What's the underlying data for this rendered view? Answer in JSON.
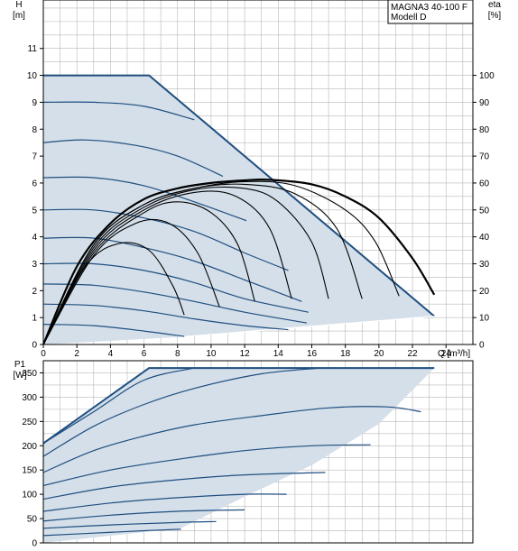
{
  "title": {
    "line1": "MAGNA3 40-100 F",
    "line2": "Modell D"
  },
  "colors": {
    "envelope_fill": "#d4dfe9",
    "envelope_edge": "#1f4e80",
    "curve": "#1f4e80",
    "efficiency_curve": "#000000",
    "grid": "#b8b8b8",
    "axis": "#000000"
  },
  "chart_data": [
    {
      "type": "line",
      "name": "head",
      "ylabel": "H",
      "yunit": "[m]",
      "y2label": "eta",
      "y2unit": "[%]",
      "xlabel": "Q [m³/h]",
      "xlim": [
        0,
        25.6
      ],
      "ylim": [
        0,
        12.8
      ],
      "y2lim": [
        0,
        128
      ],
      "xticks": [
        0,
        2,
        4,
        6,
        8,
        10,
        12,
        14,
        16,
        18,
        20,
        22,
        24
      ],
      "yticks": [
        0,
        1,
        2,
        3,
        4,
        5,
        6,
        7,
        8,
        9,
        10,
        11
      ],
      "y2ticks": [
        0,
        10,
        20,
        30,
        40,
        50,
        60,
        70,
        80,
        90,
        100
      ],
      "grid": true,
      "envelope": {
        "x": [
          0,
          6.3,
          23.3,
          23.3,
          8.2,
          0
        ],
        "y": [
          10,
          10,
          1.05,
          1.05,
          0.28,
          0
        ]
      },
      "head_curves": [
        {
          "x": [
            0,
            3,
            6,
            9.0
          ],
          "y": [
            9.0,
            9.0,
            8.85,
            8.35
          ]
        },
        {
          "x": [
            0,
            2.5,
            5.5,
            8.0,
            10.7
          ],
          "y": [
            7.5,
            7.6,
            7.4,
            7.0,
            6.25
          ]
        },
        {
          "x": [
            0,
            3,
            6,
            9,
            12.1
          ],
          "y": [
            6.2,
            6.2,
            5.9,
            5.3,
            4.6
          ]
        },
        {
          "x": [
            0,
            3,
            6,
            9,
            12,
            14.6
          ],
          "y": [
            5.0,
            5.0,
            4.7,
            4.2,
            3.4,
            2.75
          ]
        },
        {
          "x": [
            0,
            3,
            6,
            9,
            12,
            15.4
          ],
          "y": [
            3.95,
            3.95,
            3.6,
            3.1,
            2.4,
            1.6
          ]
        },
        {
          "x": [
            0,
            3,
            6,
            9,
            12,
            15.8
          ],
          "y": [
            3.0,
            3.0,
            2.75,
            2.3,
            1.7,
            1.2
          ]
        },
        {
          "x": [
            0,
            3,
            6,
            9,
            12,
            15.7
          ],
          "y": [
            2.25,
            2.2,
            1.95,
            1.6,
            1.2,
            0.8
          ]
        },
        {
          "x": [
            0,
            3,
            6,
            9,
            12,
            14.6
          ],
          "y": [
            1.5,
            1.45,
            1.25,
            0.95,
            0.7,
            0.55
          ]
        },
        {
          "x": [
            0,
            3,
            6,
            8.4
          ],
          "y": [
            0.75,
            0.7,
            0.5,
            0.3
          ]
        }
      ],
      "efficiency_curves": [
        {
          "x": [
            0,
            2,
            4,
            6,
            8,
            10,
            12,
            13.5,
            16,
            18,
            20,
            22,
            23.3
          ],
          "eta": [
            0,
            29,
            45,
            54,
            58,
            60,
            61,
            61.2,
            59.5,
            55,
            47,
            32,
            18.5
          ]
        },
        {
          "x": [
            0,
            3,
            6,
            9,
            12,
            15,
            18,
            19.8,
            21.2
          ],
          "eta": [
            0,
            37,
            52,
            58,
            60.5,
            59,
            50,
            38,
            18
          ]
        },
        {
          "x": [
            0,
            3,
            6,
            9,
            12,
            15,
            17.5,
            19.0
          ],
          "eta": [
            0,
            37,
            52,
            58,
            59.5,
            56,
            43,
            17
          ]
        },
        {
          "x": [
            0,
            3,
            6,
            9,
            12,
            14,
            16.0,
            17.0
          ],
          "eta": [
            0,
            36,
            51,
            57.5,
            58,
            53,
            38,
            17
          ]
        },
        {
          "x": [
            0,
            3,
            6,
            9,
            11.5,
            13.5,
            14.8
          ],
          "eta": [
            0,
            35,
            50,
            56.5,
            55,
            43,
            17
          ]
        },
        {
          "x": [
            0,
            3,
            6,
            8,
            10.0,
            11.6,
            12.6
          ],
          "eta": [
            0,
            34,
            49,
            53,
            49,
            37,
            16
          ]
        },
        {
          "x": [
            0,
            3,
            5.5,
            7.5,
            9.2,
            10.5
          ],
          "eta": [
            0,
            33,
            45,
            45,
            34,
            14
          ]
        },
        {
          "x": [
            0,
            2.5,
            4.5,
            6.3,
            7.7,
            8.4
          ],
          "eta": [
            0,
            29,
            37.5,
            35,
            22,
            11
          ]
        }
      ]
    },
    {
      "type": "line",
      "name": "power",
      "ylabel": "P1",
      "yunit": "[W]",
      "xlim": [
        0,
        25.6
      ],
      "ylim": [
        0,
        375
      ],
      "yticks": [
        0,
        50,
        100,
        150,
        200,
        250,
        300,
        350
      ],
      "grid": true,
      "envelope": {
        "x": [
          0,
          6.3,
          23.3,
          20.0,
          16.0,
          12.0,
          8.2,
          0
        ],
        "y": [
          205,
          360,
          360,
          245,
          160,
          95,
          30,
          0
        ]
      },
      "power_curves": [
        {
          "x": [
            0,
            3,
            6,
            9.0
          ],
          "y": [
            205,
            270,
            335,
            360
          ]
        },
        {
          "x": [
            0,
            3,
            6,
            9,
            13,
            16.5
          ],
          "y": [
            178,
            240,
            285,
            318,
            348,
            360
          ]
        },
        {
          "x": [
            0,
            3,
            6,
            9,
            13,
            17,
            20.5,
            22.5
          ],
          "y": [
            145,
            190,
            220,
            243,
            262,
            278,
            280,
            270
          ]
        },
        {
          "x": [
            0,
            4,
            8,
            12,
            16,
            19.5
          ],
          "y": [
            118,
            150,
            172,
            190,
            200,
            202
          ]
        },
        {
          "x": [
            0,
            4,
            8,
            12,
            16.8
          ],
          "y": [
            90,
            115,
            130,
            140,
            145
          ]
        },
        {
          "x": [
            0,
            4,
            8,
            12,
            14.5
          ],
          "y": [
            65,
            82,
            93,
            100,
            100
          ]
        },
        {
          "x": [
            0,
            4,
            8,
            12.0
          ],
          "y": [
            45,
            57,
            65,
            68
          ]
        },
        {
          "x": [
            0,
            4,
            8,
            10.3
          ],
          "y": [
            30,
            37,
            42,
            44
          ]
        },
        {
          "x": [
            0,
            3,
            6,
            8.2
          ],
          "y": [
            15,
            20,
            25,
            28
          ]
        }
      ]
    }
  ]
}
